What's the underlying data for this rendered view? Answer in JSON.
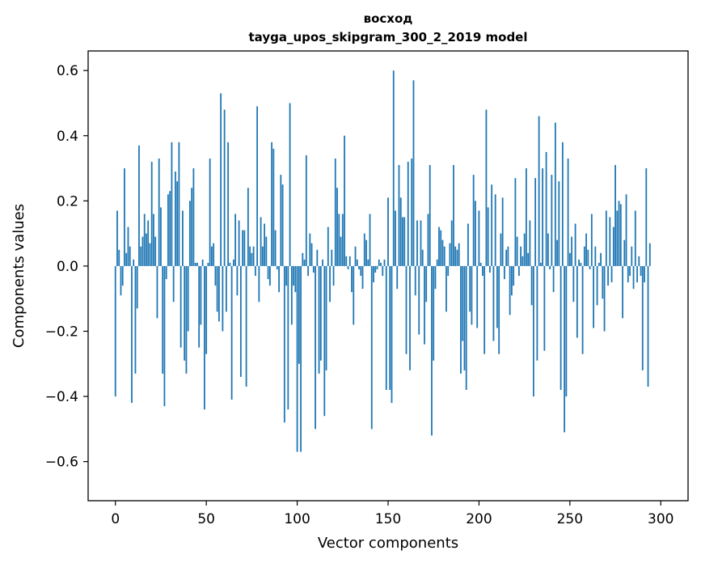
{
  "chart_data": {
    "type": "bar",
    "title": "восход",
    "subtitle": "tayga_upos_skipgram_300_2_2019 model",
    "xlabel": "Vector components",
    "ylabel": "Components values",
    "xlim": [
      -15,
      315
    ],
    "ylim": [
      -0.72,
      0.66
    ],
    "xticks": [
      0,
      50,
      100,
      150,
      200,
      250,
      300
    ],
    "xtick_labels": [
      "0",
      "50",
      "100",
      "150",
      "200",
      "250",
      "300"
    ],
    "yticks": [
      -0.6,
      -0.4,
      -0.2,
      0.0,
      0.2,
      0.4,
      0.6
    ],
    "ytick_labels": [
      "−0.6",
      "−0.4",
      "−0.2",
      "0.0",
      "0.2",
      "0.4",
      "0.6"
    ],
    "color": "#1f77b4",
    "grid": false,
    "values": [
      -0.4,
      0.17,
      0.05,
      -0.09,
      -0.06,
      0.3,
      0.04,
      0.12,
      0.06,
      -0.42,
      0.02,
      -0.33,
      -0.13,
      0.37,
      0.06,
      0.09,
      0.16,
      0.1,
      0.14,
      0.07,
      0.32,
      0.16,
      0.09,
      -0.16,
      0.33,
      0.18,
      -0.33,
      -0.43,
      -0.04,
      0.22,
      0.23,
      0.38,
      -0.11,
      0.29,
      0.26,
      0.38,
      -0.25,
      0.17,
      -0.29,
      -0.33,
      -0.2,
      0.2,
      0.24,
      0.3,
      0.01,
      0.01,
      -0.25,
      -0.18,
      0.02,
      -0.44,
      -0.27,
      0.01,
      0.33,
      0.06,
      0.07,
      -0.06,
      -0.14,
      -0.17,
      0.53,
      -0.2,
      0.48,
      -0.14,
      0.38,
      0.01,
      -0.41,
      0.02,
      0.16,
      -0.09,
      0.14,
      -0.34,
      0.11,
      0.11,
      -0.37,
      0.24,
      0.06,
      0.04,
      0.06,
      -0.03,
      0.49,
      -0.11,
      0.15,
      0.06,
      0.13,
      0.09,
      -0.04,
      -0.06,
      0.38,
      0.36,
      0.11,
      -0.01,
      -0.08,
      0.28,
      0.25,
      -0.48,
      -0.06,
      -0.44,
      0.5,
      -0.18,
      -0.06,
      -0.08,
      -0.57,
      -0.3,
      -0.57,
      0.04,
      0.02,
      0.34,
      -0.03,
      0.1,
      0.07,
      -0.02,
      -0.5,
      0.05,
      -0.33,
      -0.29,
      0.02,
      -0.46,
      -0.32,
      0.12,
      -0.11,
      0.05,
      -0.06,
      0.33,
      0.24,
      0.16,
      0.09,
      0.16,
      0.4,
      0.03,
      -0.01,
      0.03,
      -0.08,
      -0.18,
      0.06,
      0.02,
      -0.01,
      -0.03,
      -0.07,
      0.1,
      0.08,
      0.02,
      0.16,
      -0.5,
      -0.05,
      -0.02,
      -0.01,
      0.02,
      0.01,
      -0.03,
      0.02,
      -0.38,
      0.21,
      -0.38,
      -0.42,
      0.6,
      0.17,
      -0.07,
      0.31,
      0.21,
      0.15,
      0.15,
      -0.27,
      0.32,
      -0.32,
      0.33,
      0.57,
      -0.09,
      0.14,
      -0.21,
      0.14,
      0.05,
      -0.24,
      -0.11,
      0.16,
      0.31,
      -0.52,
      -0.29,
      -0.07,
      0.02,
      0.12,
      0.11,
      0.08,
      0.06,
      -0.14,
      -0.03,
      0.07,
      0.14,
      0.31,
      0.06,
      0.05,
      0.07,
      -0.33,
      -0.23,
      -0.32,
      -0.38,
      0.13,
      -0.14,
      -0.18,
      0.28,
      0.2,
      -0.19,
      0.17,
      0.01,
      -0.03,
      -0.27,
      0.48,
      0.18,
      -0.02,
      0.25,
      -0.23,
      0.22,
      -0.19,
      -0.27,
      0.1,
      0.21,
      -0.04,
      0.05,
      0.06,
      -0.15,
      -0.09,
      -0.06,
      0.27,
      0.09,
      -0.03,
      0.06,
      0.03,
      0.1,
      0.3,
      0.04,
      0.14,
      -0.12,
      -0.4,
      0.27,
      -0.29,
      0.46,
      0.01,
      0.3,
      -0.26,
      0.35,
      0.1,
      -0.01,
      0.28,
      -0.08,
      0.44,
      0.08,
      0.26,
      -0.38,
      0.38,
      -0.51,
      -0.4,
      0.33,
      0.04,
      0.09,
      -0.11,
      0.13,
      -0.22,
      0.02,
      0.01,
      -0.27,
      0.06,
      0.1,
      0.05,
      -0.01,
      0.16,
      -0.19,
      0.06,
      -0.12,
      0.01,
      0.04,
      -0.1,
      -0.2,
      0.17,
      -0.06,
      0.15,
      -0.05,
      0.12,
      0.31,
      0.17,
      0.2,
      0.19,
      -0.16,
      0.08,
      0.22,
      -0.05,
      -0.03,
      0.06,
      -0.07,
      0.17,
      -0.05,
      0.03,
      -0.03,
      -0.32,
      -0.05,
      0.3,
      -0.37,
      0.07
    ]
  }
}
